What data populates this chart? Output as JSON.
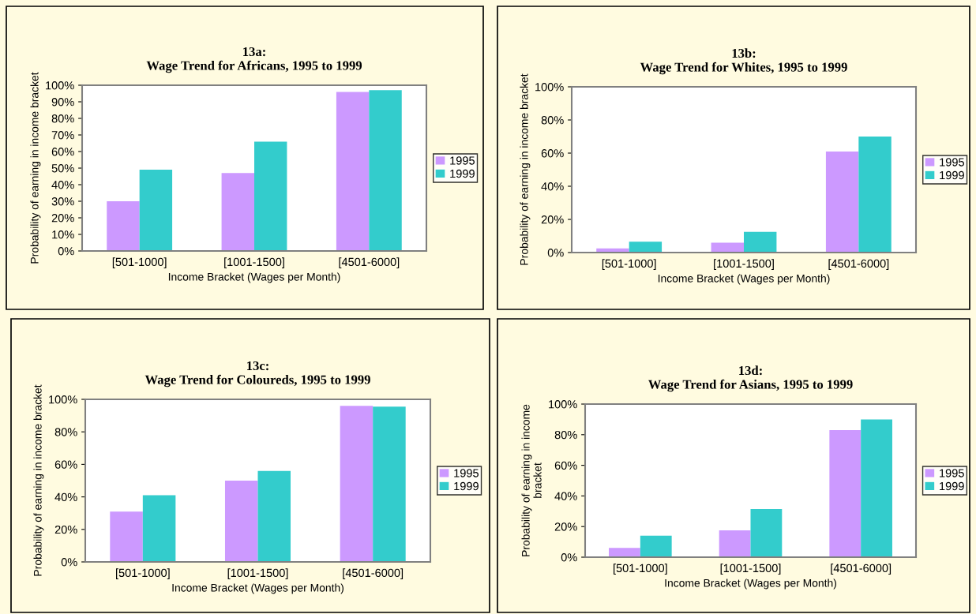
{
  "chart_data": [
    {
      "type": "bar",
      "title": "13a:\nWage Trend for Africans, 1995 to 1999",
      "xlabel": "Income Bracket (Wages per Month)",
      "ylabel": "Probability of earning in income bracket",
      "categories": [
        "[501-1000]",
        "[1001-1500]",
        "[4501-6000]"
      ],
      "series": [
        {
          "name": "1995",
          "color": "#cc99ff",
          "values": [
            30,
            47,
            96
          ]
        },
        {
          "name": "1999",
          "color": "#33cccc",
          "values": [
            49,
            66,
            97
          ]
        }
      ],
      "ylim": [
        0,
        100
      ],
      "yticks": [
        {
          "value": 0,
          "label": "0%"
        },
        {
          "value": 10,
          "label": "10%"
        },
        {
          "value": 20,
          "label": "20%"
        },
        {
          "value": 30,
          "label": "30%"
        },
        {
          "value": 40,
          "label": "40%"
        },
        {
          "value": 50,
          "label": "50%"
        },
        {
          "value": 60,
          "label": "60%"
        },
        {
          "value": 70,
          "label": "70%"
        },
        {
          "value": 80,
          "label": "80%"
        },
        {
          "value": 90,
          "label": "90%"
        },
        {
          "value": 100,
          "label": "100%"
        }
      ],
      "grid": false,
      "legend": "right"
    },
    {
      "type": "bar",
      "title": "13b:\nWage Trend for Whites, 1995 to 1999",
      "xlabel": "Income Bracket (Wages per Month)",
      "ylabel": "Probability of earning in income bracket",
      "categories": [
        "[501-1000]",
        "[1001-1500]",
        "[4501-6000]"
      ],
      "series": [
        {
          "name": "1995",
          "color": "#cc99ff",
          "values": [
            2.5,
            6,
            61
          ]
        },
        {
          "name": "1999",
          "color": "#33cccc",
          "values": [
            6.5,
            12.5,
            70
          ]
        }
      ],
      "ylim": [
        0,
        100
      ],
      "yticks": [
        {
          "value": 0,
          "label": "0%"
        },
        {
          "value": 20,
          "label": "20%"
        },
        {
          "value": 40,
          "label": "40%"
        },
        {
          "value": 60,
          "label": "60%"
        },
        {
          "value": 80,
          "label": "80%"
        },
        {
          "value": 100,
          "label": "100%"
        }
      ],
      "grid": false,
      "legend": "right"
    },
    {
      "type": "bar",
      "title": "13c:\nWage Trend for Coloureds, 1995 to 1999",
      "xlabel": "Income Bracket (Wages per Month)",
      "ylabel": "Probability of earning in income bracket",
      "categories": [
        "[501-1000]",
        "[1001-1500]",
        "[4501-6000]"
      ],
      "series": [
        {
          "name": "1995",
          "color": "#cc99ff",
          "values": [
            31,
            50,
            96
          ]
        },
        {
          "name": "1999",
          "color": "#33cccc",
          "values": [
            41,
            56,
            95.5
          ]
        }
      ],
      "ylim": [
        0,
        100
      ],
      "yticks": [
        {
          "value": 0,
          "label": "0%"
        },
        {
          "value": 20,
          "label": "20%"
        },
        {
          "value": 40,
          "label": "40%"
        },
        {
          "value": 60,
          "label": "60%"
        },
        {
          "value": 80,
          "label": "80%"
        },
        {
          "value": 100,
          "label": "100%"
        }
      ],
      "grid": false,
      "legend": "right"
    },
    {
      "type": "bar",
      "title": "13d:\nWage Trend for Asians, 1995 to 1999",
      "xlabel": "Income Bracket (Wages per Month)",
      "ylabel": "Probability of earning in income\nbracket",
      "categories": [
        "[501-1000]",
        "[1001-1500]",
        "[4501-6000]"
      ],
      "series": [
        {
          "name": "1995",
          "color": "#cc99ff",
          "values": [
            6,
            17.5,
            83
          ]
        },
        {
          "name": "1999",
          "color": "#33cccc",
          "values": [
            14,
            31.5,
            90
          ]
        }
      ],
      "ylim": [
        0,
        100
      ],
      "yticks": [
        {
          "value": 0,
          "label": "0%"
        },
        {
          "value": 20,
          "label": "20%"
        },
        {
          "value": 40,
          "label": "40%"
        },
        {
          "value": 60,
          "label": "60%"
        },
        {
          "value": 80,
          "label": "80%"
        },
        {
          "value": 100,
          "label": "100%"
        }
      ],
      "grid": false,
      "legend": "right"
    }
  ]
}
